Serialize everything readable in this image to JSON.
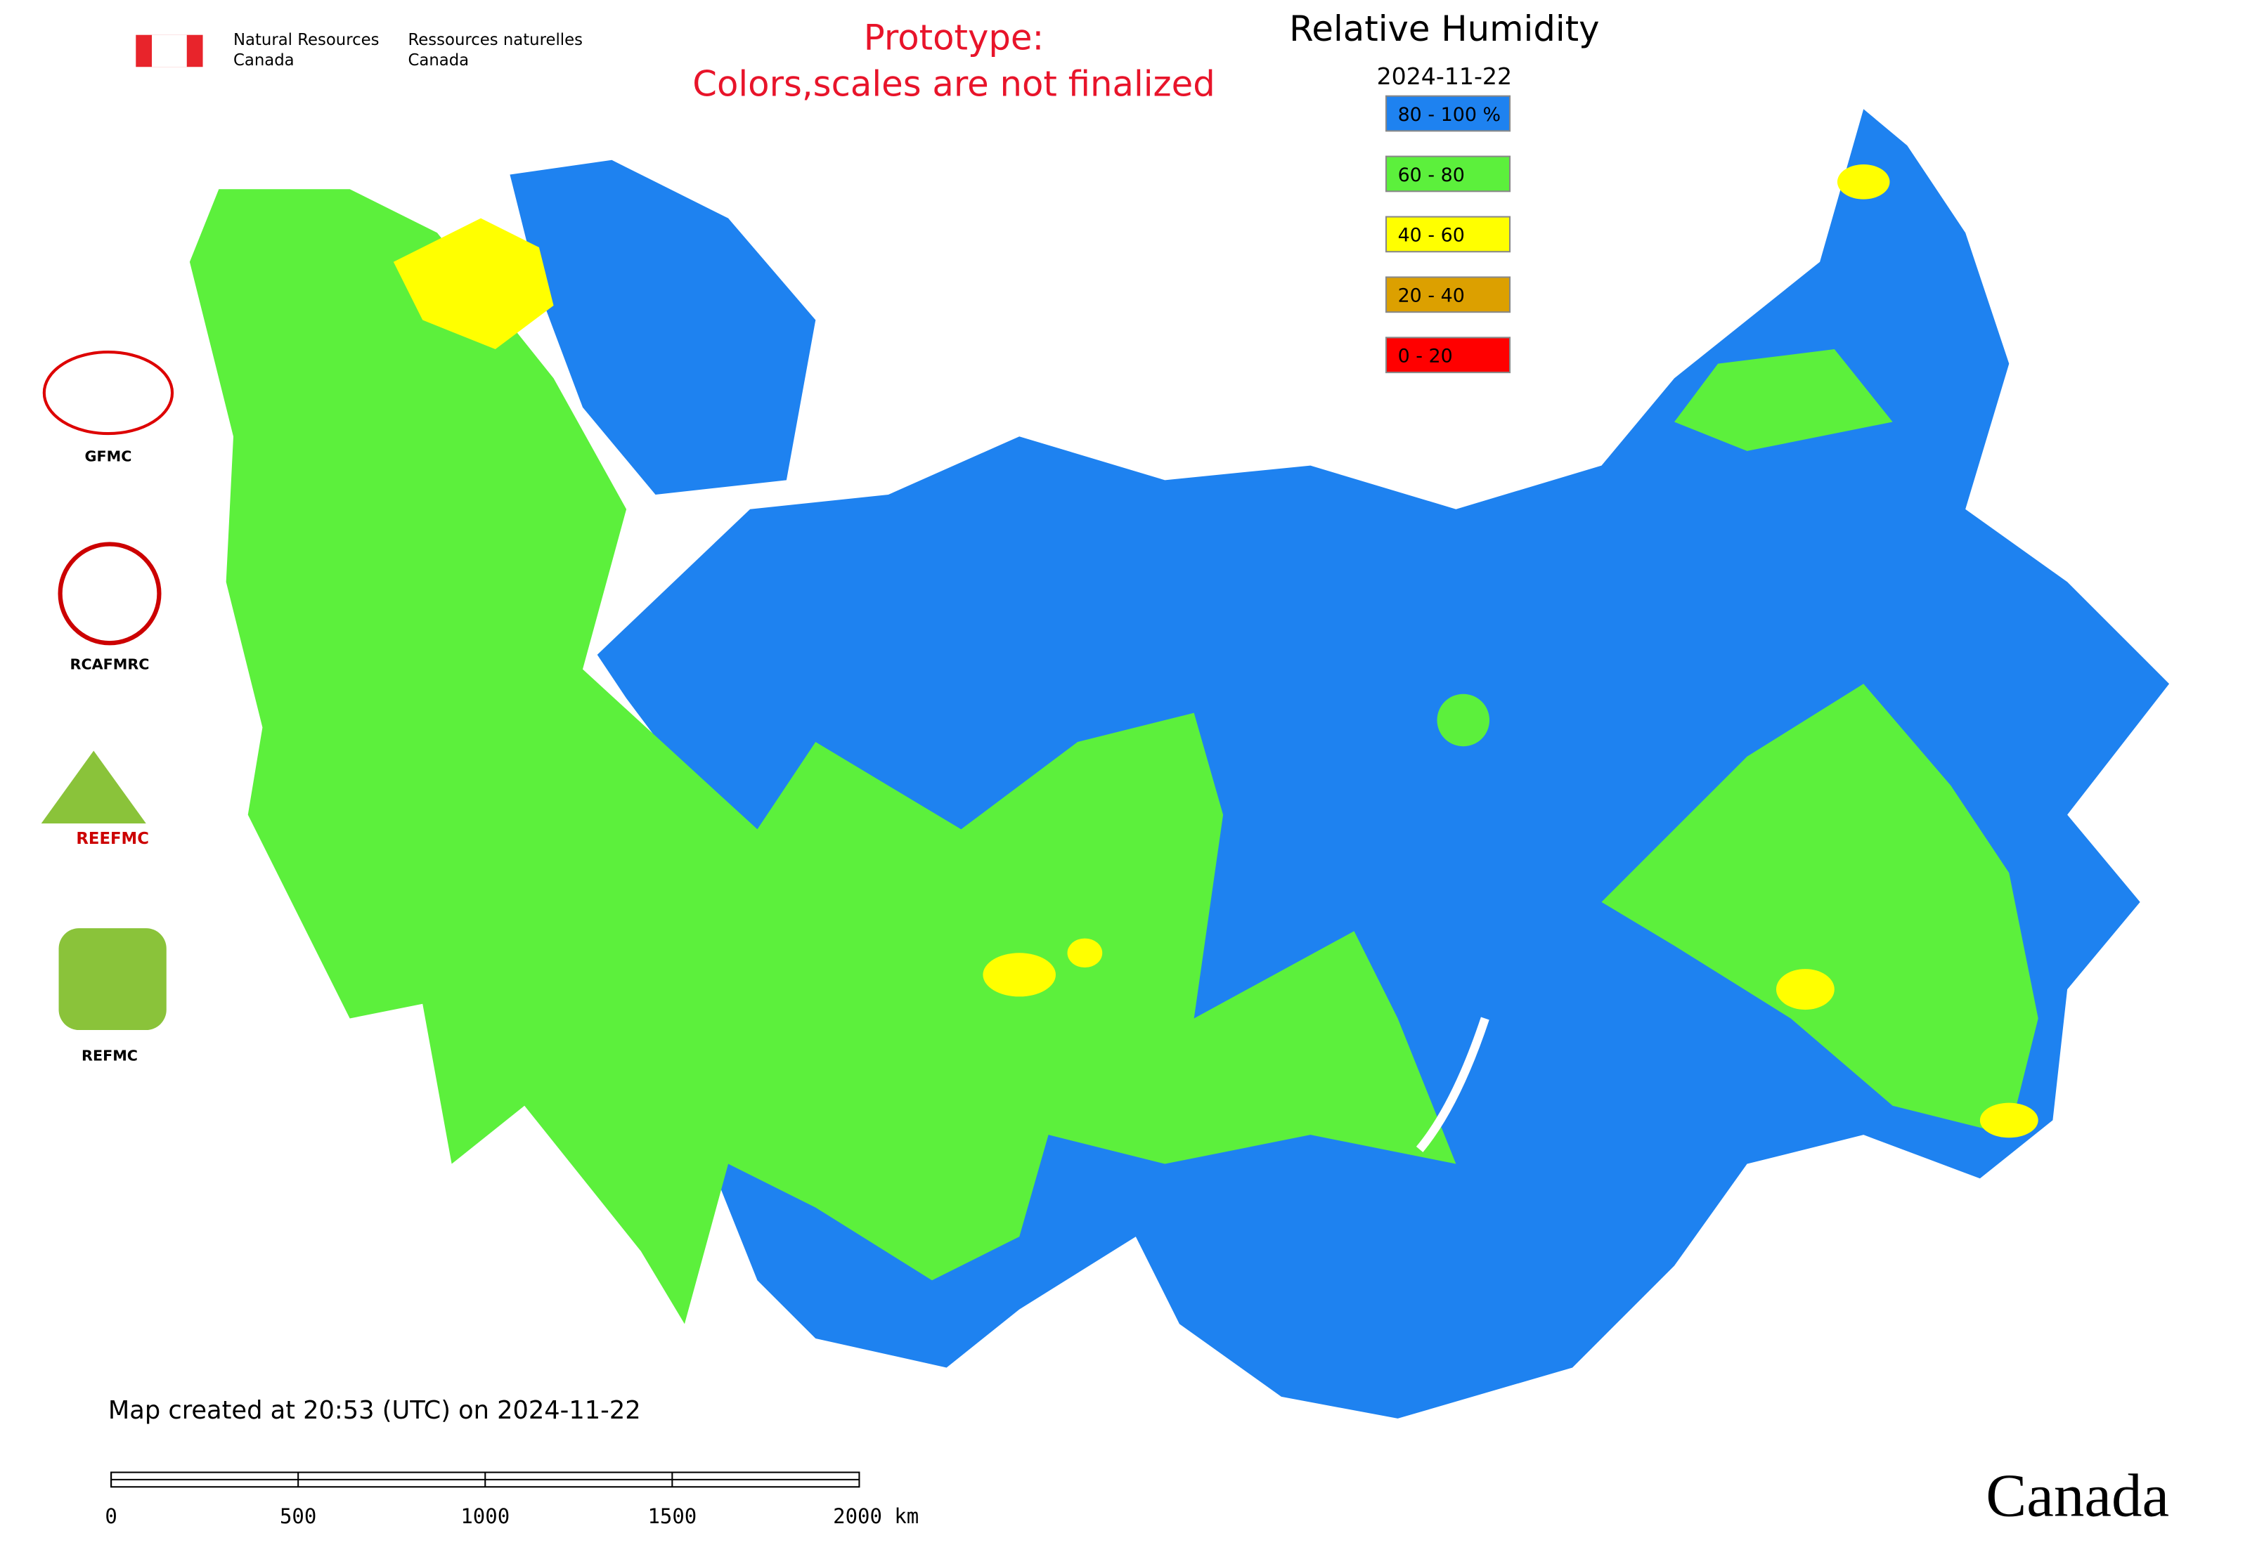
{
  "header": {
    "agency_en": [
      "Natural Resources",
      "Canada"
    ],
    "agency_fr": [
      "Ressources naturelles",
      "Canada"
    ],
    "notice": [
      "Prototype:",
      "Colors,scales are not finalized"
    ]
  },
  "legend": {
    "title": "Relative Humidity",
    "date": "2024-11-22",
    "items": [
      {
        "label": "80 - 100 %",
        "color": "#1e82f0"
      },
      {
        "label": "60 - 80",
        "color": "#5cf03c"
      },
      {
        "label": "40 - 60",
        "color": "#ffff00"
      },
      {
        "label": "20 - 40",
        "color": "#dca000"
      },
      {
        "label": "0 - 20",
        "color": "#ff0000"
      }
    ]
  },
  "logos": [
    "GFMC",
    "RCAFMRC",
    "REEFMC",
    "REFMC"
  ],
  "footer": {
    "created": "Map created at 20:53 (UTC) on 2024-11-22",
    "scale_labels": [
      "0",
      "500",
      "1000",
      "1500",
      "2000 km"
    ],
    "wordmark": "Canada"
  }
}
